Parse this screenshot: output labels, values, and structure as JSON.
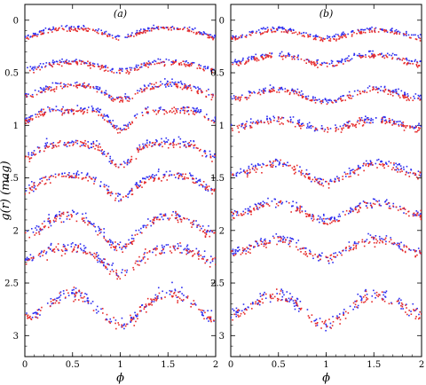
{
  "chart_data": [
    {
      "type": "scatter",
      "panel_label": "(a)",
      "xlabel": "ϕ",
      "ylabel": "g(r) (mag)",
      "xlim": [
        0,
        2
      ],
      "ylim": [
        3.2,
        -0.15
      ],
      "y_inverted": true,
      "xticks": [
        0,
        0.5,
        1,
        1.5,
        2
      ],
      "xtick_labels": [
        "0",
        "0.5",
        "1",
        "1.5",
        "2"
      ],
      "yticks": [
        0,
        0.5,
        1,
        1.5,
        2,
        2.5,
        3
      ],
      "ytick_labels": [
        "0",
        "0.5",
        "1",
        "1.5",
        "2",
        "2.5",
        "3"
      ],
      "grid": false,
      "legend": "none",
      "series_colors": {
        "g": "#2d2df0",
        "r": "#e62a2a"
      },
      "light_curves": [
        {
          "offset": 0.05,
          "amp": 0.14,
          "min1": 1.0,
          "min2": 0.0,
          "depth2": 0.9,
          "width": 0.16,
          "scatter": 0.02
        },
        {
          "offset": 0.36,
          "amp": 0.14,
          "min1": 1.0,
          "min2": 0.0,
          "depth2": 0.9,
          "width": 0.2,
          "scatter": 0.025
        },
        {
          "offset": 0.57,
          "amp": 0.2,
          "min1": 1.0,
          "min2": 0.0,
          "depth2": 0.8,
          "width": 0.18,
          "scatter": 0.03
        },
        {
          "offset": 0.82,
          "amp": 0.25,
          "min1": 1.0,
          "min2": 0.0,
          "depth2": 0.6,
          "width": 0.12,
          "scatter": 0.035
        },
        {
          "offset": 1.12,
          "amp": 0.3,
          "min1": 1.0,
          "min2": 0.0,
          "depth2": 0.7,
          "width": 0.14,
          "scatter": 0.04
        },
        {
          "offset": 1.42,
          "amp": 0.3,
          "min1": 1.0,
          "min2": 0.0,
          "depth2": 0.7,
          "width": 0.16,
          "scatter": 0.04
        },
        {
          "offset": 1.75,
          "amp": 0.45,
          "min1": 1.0,
          "min2": 0.0,
          "depth2": 0.7,
          "width": 0.2,
          "scatter": 0.05
        },
        {
          "offset": 2.1,
          "amp": 0.35,
          "min1": 1.0,
          "min2": 0.0,
          "depth2": 0.6,
          "width": 0.18,
          "scatter": 0.05
        },
        {
          "offset": 2.35,
          "amp": 0.6,
          "min1": 1.0,
          "min2": 0.0,
          "depth2": 0.9,
          "width": 0.25,
          "scatter": 0.06
        }
      ]
    },
    {
      "type": "scatter",
      "panel_label": "(b)",
      "xlabel": "ϕ",
      "ylabel": "",
      "xlim": [
        0,
        2
      ],
      "ylim": [
        3.2,
        -0.15
      ],
      "y_inverted": true,
      "xticks": [
        0,
        0.5,
        1,
        1.5,
        2
      ],
      "xtick_labels": [
        "0",
        "0.5",
        "1",
        "1.5",
        "2"
      ],
      "yticks": [
        0,
        0.5,
        1,
        1.5,
        2,
        2.5,
        3
      ],
      "ytick_labels": [
        "0",
        "0.5",
        "1",
        "1.5",
        "2",
        "2.5",
        "3"
      ],
      "grid": false,
      "legend": "none",
      "series_colors": {
        "g": "#2d2df0",
        "r": "#e62a2a"
      },
      "light_curves": [
        {
          "offset": 0.05,
          "amp": 0.14,
          "min1": 1.0,
          "min2": 0.0,
          "depth2": 0.9,
          "width": 0.22,
          "scatter": 0.02
        },
        {
          "offset": 0.28,
          "amp": 0.16,
          "min1": 1.0,
          "min2": 0.0,
          "depth2": 0.9,
          "width": 0.22,
          "scatter": 0.025
        },
        {
          "offset": 0.6,
          "amp": 0.2,
          "min1": 1.0,
          "min2": 0.0,
          "depth2": 0.8,
          "width": 0.22,
          "scatter": 0.03
        },
        {
          "offset": 0.88,
          "amp": 0.18,
          "min1": 1.0,
          "min2": 0.0,
          "depth2": 0.9,
          "width": 0.24,
          "scatter": 0.035
        },
        {
          "offset": 1.28,
          "amp": 0.3,
          "min1": 1.0,
          "min2": 0.0,
          "depth2": 0.7,
          "width": 0.22,
          "scatter": 0.04
        },
        {
          "offset": 1.62,
          "amp": 0.32,
          "min1": 1.0,
          "min2": 0.0,
          "depth2": 0.8,
          "width": 0.24,
          "scatter": 0.04
        },
        {
          "offset": 2.0,
          "amp": 0.3,
          "min1": 1.0,
          "min2": 0.0,
          "depth2": 0.8,
          "width": 0.22,
          "scatter": 0.05
        },
        {
          "offset": 2.4,
          "amp": 0.55,
          "min1": 1.0,
          "min2": 0.0,
          "depth2": 0.8,
          "width": 0.25,
          "scatter": 0.06
        }
      ]
    }
  ]
}
